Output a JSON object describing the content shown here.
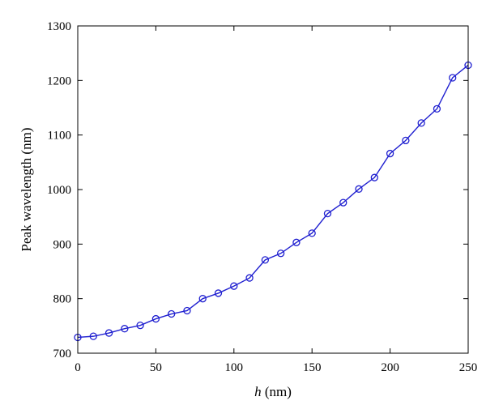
{
  "chart_data": {
    "type": "line",
    "xlabel_italic": "h",
    "xlabel_rest": " (nm)",
    "ylabel": "Peak wavelength (nm)",
    "xlim": [
      0,
      250
    ],
    "ylim": [
      700,
      1300
    ],
    "xticks": [
      0,
      50,
      100,
      150,
      200,
      250
    ],
    "yticks": [
      700,
      800,
      900,
      1000,
      1100,
      1200,
      1300
    ],
    "grid": false,
    "line_color": "#2020d0",
    "series": [
      {
        "marker": "circle",
        "x": [
          0,
          10,
          20,
          30,
          40,
          50,
          60,
          70,
          80,
          90,
          100,
          110,
          120,
          130,
          140,
          150,
          160,
          170,
          180,
          190,
          200,
          210,
          220,
          230,
          240,
          250
        ],
        "y": [
          729,
          731,
          737,
          745,
          751,
          763,
          772,
          778,
          800,
          810,
          823,
          838,
          871,
          883,
          903,
          920,
          956,
          976,
          1001,
          1022,
          1066,
          1090,
          1122,
          1148,
          1205,
          1228
        ]
      }
    ]
  }
}
